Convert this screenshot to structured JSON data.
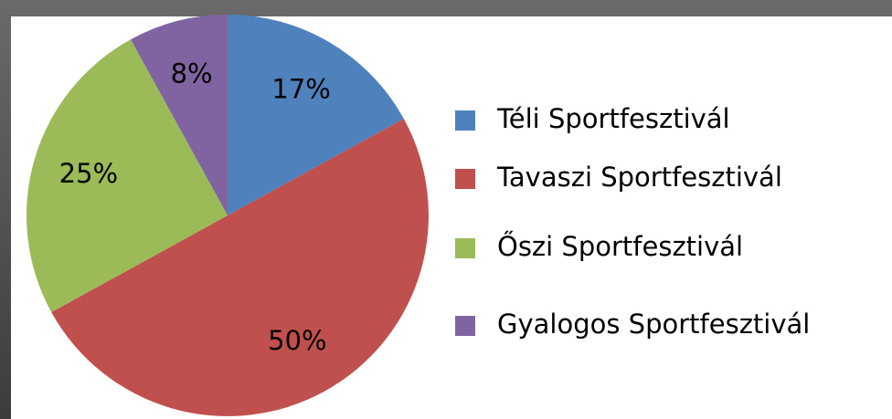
{
  "chart_data": {
    "type": "pie",
    "categories": [
      "Téli Sportfesztivál",
      "Tavaszi Sportfesztivál",
      "Őszi Sportfesztivál",
      "Gyalogos Sportfesztivál"
    ],
    "values": [
      17,
      50,
      25,
      8
    ],
    "value_labels": [
      "17%",
      "50%",
      "25%",
      "8%"
    ],
    "colors": [
      "#4f81bd",
      "#c0504d",
      "#9bbb59",
      "#8064a2"
    ],
    "legend": "right"
  }
}
